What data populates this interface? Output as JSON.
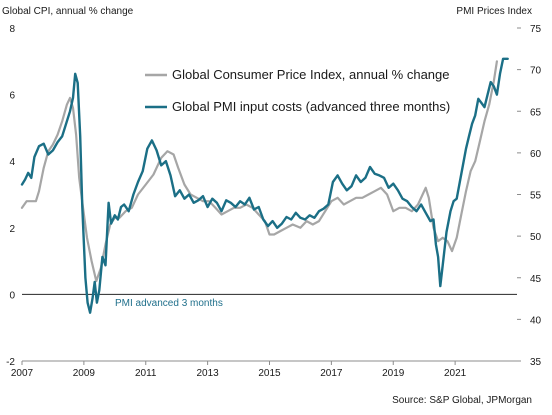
{
  "chart_data": {
    "type": "line",
    "left_axis_label": "Global CPI, annual % change",
    "right_axis_label": "PMI Prices Index",
    "source": "Source: S&P Global, JPMorgan",
    "annotation": "PMI advanced 3 months",
    "colors": {
      "cpi": "#a6a6a6",
      "pmi": "#1b6f86"
    },
    "y_left": {
      "range": [
        -2,
        8
      ],
      "ticks": [
        "-2",
        "0",
        "2",
        "4",
        "6",
        "8"
      ]
    },
    "y_right": {
      "range": [
        35,
        75
      ],
      "ticks": [
        "35",
        "40",
        "45",
        "50",
        "55",
        "60",
        "65",
        "70",
        "75"
      ]
    },
    "x_axis": {
      "range": [
        2007.0,
        2023.0
      ],
      "ticks": [
        "2007",
        "2009",
        "2011",
        "2013",
        "2015",
        "2017",
        "2019",
        "2021"
      ]
    },
    "zero_line": {
      "value": 0,
      "axis": "left"
    },
    "series": [
      {
        "name": "Global Consumer Price Index, annual % change",
        "key": "cpi",
        "axis": "left",
        "points": [
          [
            2007.0,
            2.6
          ],
          [
            2007.15,
            2.8
          ],
          [
            2007.3,
            2.8
          ],
          [
            2007.45,
            2.8
          ],
          [
            2007.55,
            3.1
          ],
          [
            2007.7,
            3.8
          ],
          [
            2007.85,
            4.3
          ],
          [
            2008.0,
            4.5
          ],
          [
            2008.15,
            4.8
          ],
          [
            2008.3,
            5.2
          ],
          [
            2008.45,
            5.7
          ],
          [
            2008.55,
            5.9
          ],
          [
            2008.65,
            5.6
          ],
          [
            2008.75,
            4.8
          ],
          [
            2008.85,
            3.5
          ],
          [
            2009.0,
            2.4
          ],
          [
            2009.1,
            1.7
          ],
          [
            2009.25,
            1.0
          ],
          [
            2009.4,
            0.4
          ],
          [
            2009.55,
            0.8
          ],
          [
            2009.7,
            1.5
          ],
          [
            2009.85,
            2.1
          ],
          [
            2010.0,
            2.3
          ],
          [
            2010.15,
            2.3
          ],
          [
            2010.35,
            2.5
          ],
          [
            2010.55,
            2.6
          ],
          [
            2010.75,
            3.0
          ],
          [
            2011.0,
            3.3
          ],
          [
            2011.25,
            3.6
          ],
          [
            2011.5,
            4.1
          ],
          [
            2011.7,
            4.3
          ],
          [
            2011.9,
            4.2
          ],
          [
            2012.05,
            3.8
          ],
          [
            2012.25,
            3.3
          ],
          [
            2012.45,
            3.0
          ],
          [
            2012.65,
            2.9
          ],
          [
            2012.85,
            2.8
          ],
          [
            2013.05,
            2.8
          ],
          [
            2013.25,
            2.6
          ],
          [
            2013.45,
            2.4
          ],
          [
            2013.65,
            2.5
          ],
          [
            2013.85,
            2.6
          ],
          [
            2014.05,
            2.6
          ],
          [
            2014.25,
            2.7
          ],
          [
            2014.45,
            2.6
          ],
          [
            2014.65,
            2.4
          ],
          [
            2014.85,
            2.2
          ],
          [
            2015.0,
            1.8
          ],
          [
            2015.15,
            1.8
          ],
          [
            2015.35,
            1.9
          ],
          [
            2015.55,
            2.0
          ],
          [
            2015.75,
            2.1
          ],
          [
            2016.0,
            2.0
          ],
          [
            2016.2,
            2.2
          ],
          [
            2016.4,
            2.1
          ],
          [
            2016.6,
            2.2
          ],
          [
            2016.8,
            2.5
          ],
          [
            2017.0,
            2.8
          ],
          [
            2017.2,
            2.9
          ],
          [
            2017.4,
            2.7
          ],
          [
            2017.6,
            2.8
          ],
          [
            2017.8,
            2.9
          ],
          [
            2018.0,
            2.9
          ],
          [
            2018.2,
            3.0
          ],
          [
            2018.4,
            3.1
          ],
          [
            2018.6,
            3.2
          ],
          [
            2018.8,
            3.0
          ],
          [
            2019.0,
            2.5
          ],
          [
            2019.2,
            2.6
          ],
          [
            2019.4,
            2.6
          ],
          [
            2019.6,
            2.5
          ],
          [
            2019.8,
            2.7
          ],
          [
            2019.95,
            3.0
          ],
          [
            2020.05,
            3.2
          ],
          [
            2020.15,
            2.9
          ],
          [
            2020.3,
            2.0
          ],
          [
            2020.45,
            1.6
          ],
          [
            2020.6,
            1.7
          ],
          [
            2020.75,
            1.6
          ],
          [
            2020.9,
            1.3
          ],
          [
            2021.05,
            1.7
          ],
          [
            2021.2,
            2.4
          ],
          [
            2021.35,
            3.1
          ],
          [
            2021.5,
            3.7
          ],
          [
            2021.65,
            4.0
          ],
          [
            2021.8,
            4.6
          ],
          [
            2021.95,
            5.2
          ],
          [
            2022.1,
            5.7
          ],
          [
            2022.25,
            6.4
          ],
          [
            2022.35,
            7.0
          ]
        ]
      },
      {
        "name": "Global PMI input costs (advanced three months)",
        "key": "pmi",
        "axis": "right",
        "points": [
          [
            2007.0,
            56.2
          ],
          [
            2007.1,
            56.8
          ],
          [
            2007.2,
            57.6
          ],
          [
            2007.3,
            57.0
          ],
          [
            2007.4,
            59.5
          ],
          [
            2007.55,
            60.8
          ],
          [
            2007.7,
            61.1
          ],
          [
            2007.85,
            59.8
          ],
          [
            2008.0,
            60.3
          ],
          [
            2008.15,
            61.3
          ],
          [
            2008.3,
            62.0
          ],
          [
            2008.45,
            63.8
          ],
          [
            2008.55,
            65.0
          ],
          [
            2008.65,
            66.6
          ],
          [
            2008.72,
            69.5
          ],
          [
            2008.8,
            68.4
          ],
          [
            2008.88,
            62.0
          ],
          [
            2008.95,
            53.5
          ],
          [
            2009.05,
            45.0
          ],
          [
            2009.12,
            42.0
          ],
          [
            2009.2,
            40.8
          ],
          [
            2009.28,
            42.5
          ],
          [
            2009.35,
            44.5
          ],
          [
            2009.42,
            42.0
          ],
          [
            2009.5,
            43.5
          ],
          [
            2009.6,
            47.5
          ],
          [
            2009.7,
            46.5
          ],
          [
            2009.8,
            54.0
          ],
          [
            2009.88,
            51.5
          ],
          [
            2010.0,
            52.5
          ],
          [
            2010.1,
            52.0
          ],
          [
            2010.2,
            53.5
          ],
          [
            2010.3,
            53.8
          ],
          [
            2010.45,
            53.0
          ],
          [
            2010.6,
            55.0
          ],
          [
            2010.75,
            56.5
          ],
          [
            2010.9,
            57.8
          ],
          [
            2011.05,
            60.5
          ],
          [
            2011.2,
            61.5
          ],
          [
            2011.35,
            60.3
          ],
          [
            2011.5,
            58.5
          ],
          [
            2011.65,
            59.0
          ],
          [
            2011.8,
            57.3
          ],
          [
            2011.95,
            54.8
          ],
          [
            2012.1,
            55.5
          ],
          [
            2012.25,
            54.5
          ],
          [
            2012.4,
            55.0
          ],
          [
            2012.55,
            54.0
          ],
          [
            2012.7,
            54.3
          ],
          [
            2012.85,
            54.8
          ],
          [
            2013.0,
            53.5
          ],
          [
            2013.15,
            54.5
          ],
          [
            2013.3,
            54.0
          ],
          [
            2013.45,
            53.0
          ],
          [
            2013.6,
            54.3
          ],
          [
            2013.75,
            54.0
          ],
          [
            2013.9,
            53.5
          ],
          [
            2014.05,
            54.2
          ],
          [
            2014.2,
            53.8
          ],
          [
            2014.35,
            54.6
          ],
          [
            2014.5,
            53.2
          ],
          [
            2014.65,
            53.5
          ],
          [
            2014.8,
            52.0
          ],
          [
            2014.95,
            51.2
          ],
          [
            2015.1,
            51.8
          ],
          [
            2015.25,
            51.0
          ],
          [
            2015.4,
            51.5
          ],
          [
            2015.55,
            52.3
          ],
          [
            2015.7,
            52.0
          ],
          [
            2015.85,
            52.8
          ],
          [
            2016.0,
            52.2
          ],
          [
            2016.15,
            52.0
          ],
          [
            2016.3,
            52.5
          ],
          [
            2016.45,
            52.2
          ],
          [
            2016.6,
            53.0
          ],
          [
            2016.75,
            53.3
          ],
          [
            2016.9,
            53.8
          ],
          [
            2017.05,
            56.5
          ],
          [
            2017.2,
            57.3
          ],
          [
            2017.35,
            56.3
          ],
          [
            2017.5,
            55.5
          ],
          [
            2017.65,
            56.0
          ],
          [
            2017.8,
            57.3
          ],
          [
            2017.95,
            56.5
          ],
          [
            2018.1,
            57.0
          ],
          [
            2018.25,
            58.3
          ],
          [
            2018.4,
            57.5
          ],
          [
            2018.55,
            57.3
          ],
          [
            2018.7,
            57.0
          ],
          [
            2018.85,
            55.8
          ],
          [
            2019.0,
            56.3
          ],
          [
            2019.15,
            55.5
          ],
          [
            2019.3,
            54.5
          ],
          [
            2019.45,
            54.2
          ],
          [
            2019.6,
            53.5
          ],
          [
            2019.75,
            53.0
          ],
          [
            2019.9,
            53.8
          ],
          [
            2020.05,
            52.8
          ],
          [
            2020.2,
            51.8
          ],
          [
            2020.3,
            52.0
          ],
          [
            2020.38,
            49.0
          ],
          [
            2020.45,
            47.5
          ],
          [
            2020.52,
            44.0
          ],
          [
            2020.6,
            46.5
          ],
          [
            2020.72,
            50.5
          ],
          [
            2020.85,
            53.0
          ],
          [
            2020.95,
            54.2
          ],
          [
            2021.05,
            54.5
          ],
          [
            2021.15,
            56.5
          ],
          [
            2021.25,
            58.5
          ],
          [
            2021.35,
            60.5
          ],
          [
            2021.45,
            62.0
          ],
          [
            2021.55,
            63.5
          ],
          [
            2021.65,
            64.5
          ],
          [
            2021.75,
            66.5
          ],
          [
            2021.85,
            66.0
          ],
          [
            2021.95,
            65.5
          ],
          [
            2022.05,
            67.0
          ],
          [
            2022.15,
            68.5
          ],
          [
            2022.25,
            68.0
          ],
          [
            2022.35,
            67.0
          ],
          [
            2022.45,
            69.5
          ],
          [
            2022.55,
            71.3
          ],
          [
            2022.7,
            71.3
          ]
        ]
      }
    ]
  }
}
